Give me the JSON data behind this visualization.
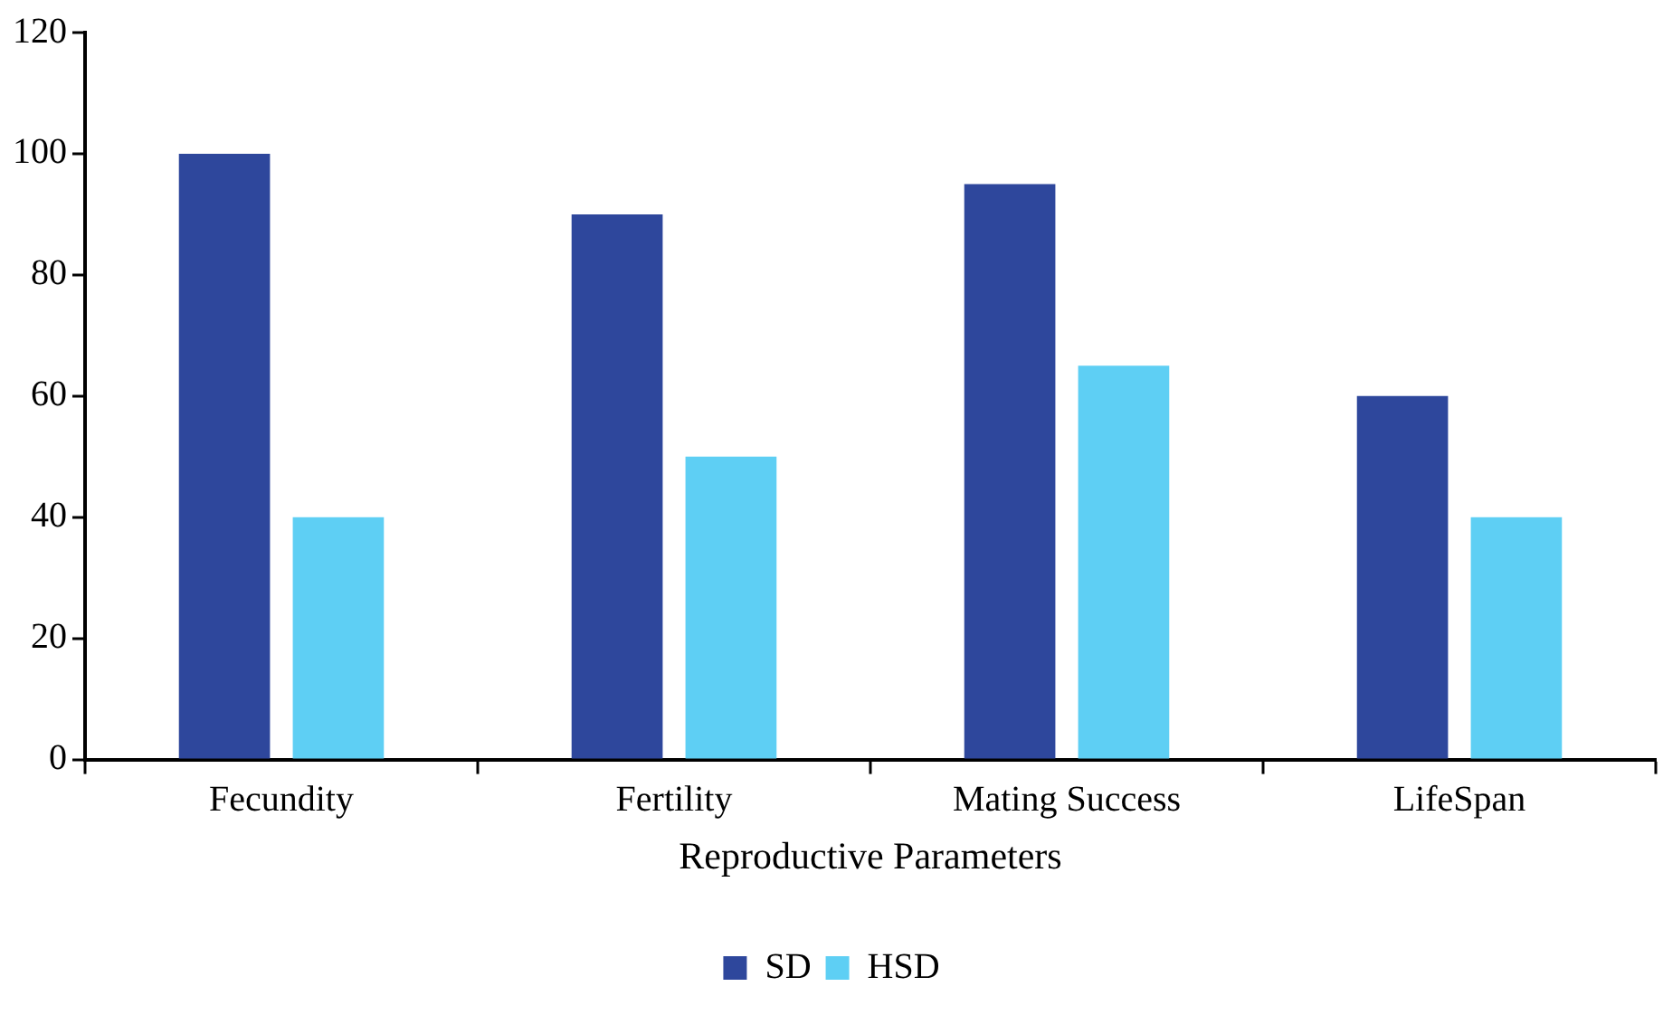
{
  "chart_data": {
    "type": "bar",
    "xlabel": "Reproductive Parameters",
    "categories": [
      "Fecundity",
      "Fertility",
      "Mating Success",
      "LifeSpan"
    ],
    "series": [
      {
        "name": "SD",
        "color": "#2e479c",
        "values": [
          100,
          90,
          95,
          60
        ]
      },
      {
        "name": "HSD",
        "color": "#5ecff4",
        "values": [
          40,
          50,
          65,
          40
        ]
      }
    ],
    "ylim": [
      0,
      120
    ],
    "yticks": [
      0,
      20,
      40,
      60,
      80,
      100,
      120
    ],
    "grid": false,
    "legend": "bottom"
  }
}
